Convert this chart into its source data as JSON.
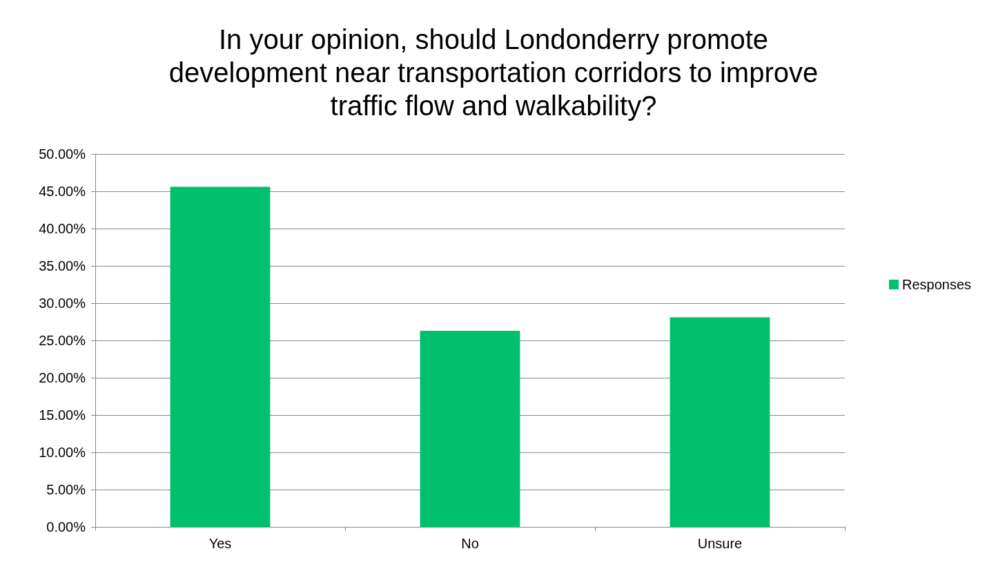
{
  "chart_data": {
    "type": "bar",
    "title": "In your opinion, should Londonderry promote\ndevelopment near transportation corridors to improve\ntraffic flow and walkability?",
    "categories": [
      "Yes",
      "No",
      "Unsure"
    ],
    "series": [
      {
        "name": "Responses",
        "color": "#00bf6f",
        "values": [
          45.6,
          26.3,
          28.1
        ]
      }
    ],
    "ylim": [
      0,
      50
    ],
    "yticks": [
      {
        "value": 0,
        "label": "0.00%"
      },
      {
        "value": 5,
        "label": "5.00%"
      },
      {
        "value": 10,
        "label": "10.00%"
      },
      {
        "value": 15,
        "label": "15.00%"
      },
      {
        "value": 20,
        "label": "20.00%"
      },
      {
        "value": 25,
        "label": "25.00%"
      },
      {
        "value": 30,
        "label": "30.00%"
      },
      {
        "value": 35,
        "label": "35.00%"
      },
      {
        "value": 40,
        "label": "40.00%"
      },
      {
        "value": 45,
        "label": "45.00%"
      },
      {
        "value": 50,
        "label": "50.00%"
      }
    ],
    "grid": "y",
    "legend": "right"
  }
}
